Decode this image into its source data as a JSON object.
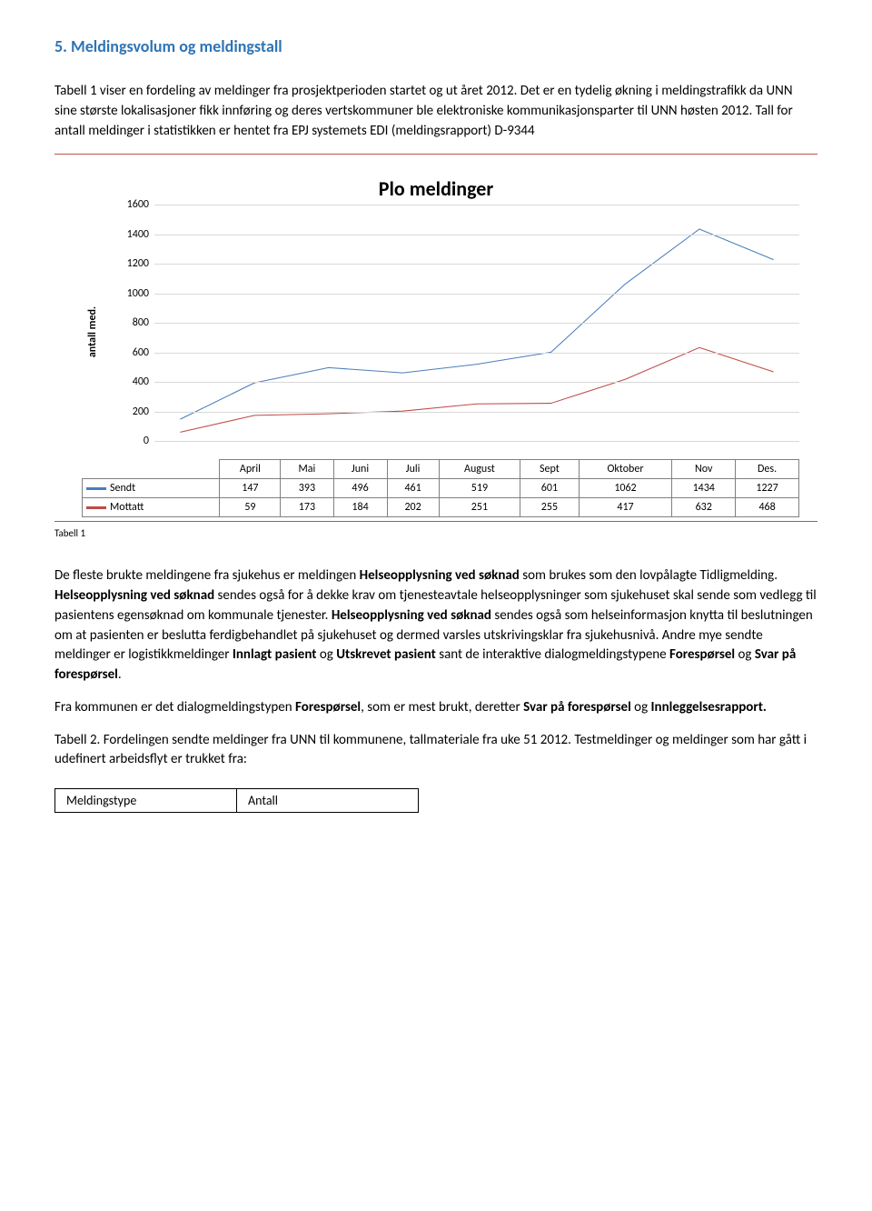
{
  "heading_number": "5.",
  "heading_text": "Meldingsvolum og meldingstall",
  "intro_p1": "Tabell 1 viser en fordeling av meldinger fra prosjektperioden startet og ut året 2012. Det er en tydelig økning i meldingstrafikk da UNN sine største lokalisasjoner fikk innføring og deres vertskommuner ble elektroniske kommunikasjonsparter til UNN høsten 2012. Tall for antall meldinger i statistikken er hentet fra EPJ systemets EDI (meldingsrapport) D-9344",
  "chart": {
    "type": "line",
    "title": "Plo meldinger",
    "ylabel": "antall med.",
    "categories": [
      "April",
      "Mai",
      "Juni",
      "Juli",
      "August",
      "Sept",
      "Oktober",
      "Nov",
      "Des."
    ],
    "series": [
      {
        "name": "Sendt",
        "color": "#4a7ebb",
        "values": [
          147,
          393,
          496,
          461,
          519,
          601,
          1062,
          1434,
          1227
        ]
      },
      {
        "name": "Mottatt",
        "color": "#be4b48",
        "values": [
          59,
          173,
          184,
          202,
          251,
          255,
          417,
          632,
          468
        ]
      }
    ],
    "ylim": [
      0,
      1600
    ],
    "ytick_step": 200,
    "grid_color": "#d9d9d9",
    "line_width": 3,
    "label_fontsize": 12,
    "title_fontsize": 22
  },
  "caption_tabell1": "Tabell 1",
  "body_p1_before": "De fleste brukte meldingene fra sjukehus er meldingen ",
  "body_p1_bold1": "Helseopplysning ved søknad",
  "body_p1_mid1": " som brukes som den lovpålagte Tidligmelding. ",
  "body_p1_bold2": "Helseopplysning ved søknad",
  "body_p1_mid2": " sendes også for å dekke krav om tjenesteavtale helseopplysninger som sjukehuset skal sende som vedlegg til pasientens egensøknad om kommunale tjenester. ",
  "body_p1_bold3": "Helseopplysning ved søknad",
  "body_p1_mid3": " sendes også som helseinformasjon knytta til beslutningen om at pasienten er beslutta ferdigbehandlet på sjukehuset og dermed varsles utskrivingsklar fra sjukehusnivå. Andre mye sendte meldinger er logistikkmeldinger ",
  "body_p1_bold4": "Innlagt pasient",
  "body_p1_mid4": " og ",
  "body_p1_bold5": "Utskrevet pasient",
  "body_p1_mid5": " sant de interaktive dialogmeldingstypene ",
  "body_p1_bold6": "Forespørsel",
  "body_p1_mid6": " og ",
  "body_p1_bold7": "Svar på forespørsel",
  "body_p1_end": ".",
  "body_p2_before": "Fra kommunen er det dialogmeldingstypen ",
  "body_p2_bold1": "Forespørsel",
  "body_p2_mid1": ", som er mest brukt, deretter ",
  "body_p2_bold2": "Svar på forespørsel",
  "body_p2_mid2": " og ",
  "body_p2_bold3": "Innleggelsesrapport.",
  "body_p3": "Tabell 2. Fordelingen sendte meldinger fra UNN til kommunene, tallmateriale fra uke 51 2012. Testmeldinger og meldinger som har gått i udefinert arbeidsflyt er trukket fra:",
  "footer_table": {
    "col1": "Meldingstype",
    "col2": "Antall"
  }
}
